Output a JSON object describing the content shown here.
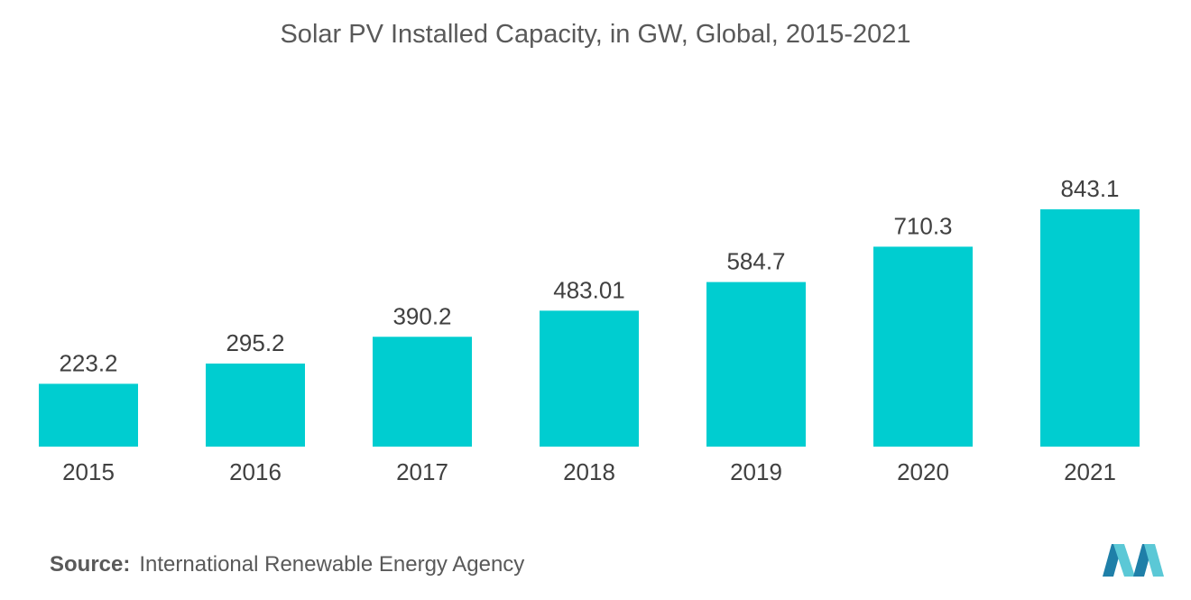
{
  "colors": {
    "bar": "#00CDD0",
    "text": "#404040",
    "muted": "#595959",
    "logo_dark": "#1F7FA8",
    "logo_light": "#5BC8D6"
  },
  "source": {
    "label": "Source:",
    "text": "International Renewable Energy Agency"
  },
  "logo": {
    "icon": "company-logo-icon"
  },
  "chart_data": {
    "type": "bar",
    "title": "Solar PV Installed Capacity, in GW, Global, 2015-2021",
    "xlabel": "",
    "ylabel": "",
    "categories": [
      "2015",
      "2016",
      "2017",
      "2018",
      "2019",
      "2020",
      "2021"
    ],
    "values": [
      223.2,
      295.2,
      390.2,
      483.01,
      584.7,
      710.3,
      843.1
    ],
    "value_labels": [
      "223.2",
      "295.2",
      "390.2",
      "483.01",
      "584.7",
      "710.3",
      "843.1"
    ],
    "ylim": [
      0,
      843.1
    ],
    "grid": false,
    "legend": "none"
  }
}
